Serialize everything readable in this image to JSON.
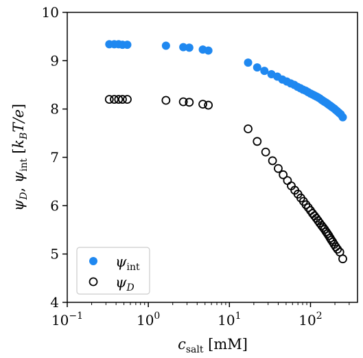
{
  "chart_data": {
    "type": "scatter",
    "xscale": "log",
    "xlim": [
      0.1,
      380
    ],
    "ylim": [
      4,
      10
    ],
    "xlabel": "c_salt [mM]",
    "ylabel": "ψ_D, ψ_int [k_B T/e]",
    "x_ticks": [
      {
        "value": 0.1,
        "base": "10",
        "exp": "−1"
      },
      {
        "value": 1,
        "base": "10",
        "exp": "0"
      },
      {
        "value": 10,
        "base": "10",
        "exp": "1"
      },
      {
        "value": 100,
        "base": "10",
        "exp": "2"
      }
    ],
    "y_ticks": [
      4,
      5,
      6,
      7,
      8,
      9,
      10
    ],
    "legend_position": "lower-left",
    "series": [
      {
        "name": "ψ_int",
        "marker": "filled-circle",
        "color": "#1f88f0",
        "points": [
          [
            0.33,
            9.34
          ],
          [
            0.38,
            9.34
          ],
          [
            0.43,
            9.34
          ],
          [
            0.48,
            9.33
          ],
          [
            0.55,
            9.33
          ],
          [
            1.65,
            9.31
          ],
          [
            2.7,
            9.28
          ],
          [
            3.2,
            9.27
          ],
          [
            4.7,
            9.23
          ],
          [
            5.5,
            9.21
          ],
          [
            17,
            8.96
          ],
          [
            22,
            8.86
          ],
          [
            27,
            8.79
          ],
          [
            33,
            8.72
          ],
          [
            39,
            8.67
          ],
          [
            45,
            8.61
          ],
          [
            51,
            8.57
          ],
          [
            57,
            8.53
          ],
          [
            63,
            8.5
          ],
          [
            69,
            8.46
          ],
          [
            75,
            8.43
          ],
          [
            81,
            8.4
          ],
          [
            87,
            8.38
          ],
          [
            93,
            8.35
          ],
          [
            100,
            8.32
          ],
          [
            106,
            8.3
          ],
          [
            112,
            8.28
          ],
          [
            118,
            8.26
          ],
          [
            124,
            8.24
          ],
          [
            130,
            8.22
          ],
          [
            137,
            8.19
          ],
          [
            143,
            8.17
          ],
          [
            149,
            8.15
          ],
          [
            156,
            8.13
          ],
          [
            162,
            8.11
          ],
          [
            168,
            8.09
          ],
          [
            175,
            8.07
          ],
          [
            181,
            8.05
          ],
          [
            188,
            8.03
          ],
          [
            196,
            8.01
          ],
          [
            205,
            7.98
          ],
          [
            215,
            7.95
          ],
          [
            225,
            7.92
          ],
          [
            236,
            7.89
          ],
          [
            250,
            7.83
          ]
        ]
      },
      {
        "name": "ψ_D",
        "marker": "open-circle",
        "color": "#000000",
        "points": [
          [
            0.33,
            8.2
          ],
          [
            0.38,
            8.2
          ],
          [
            0.43,
            8.2
          ],
          [
            0.48,
            8.2
          ],
          [
            0.55,
            8.2
          ],
          [
            1.65,
            8.18
          ],
          [
            2.7,
            8.15
          ],
          [
            3.2,
            8.14
          ],
          [
            4.7,
            8.1
          ],
          [
            5.5,
            8.08
          ],
          [
            17,
            7.59
          ],
          [
            22,
            7.33
          ],
          [
            28,
            7.11
          ],
          [
            34,
            6.93
          ],
          [
            40,
            6.77
          ],
          [
            46,
            6.64
          ],
          [
            52,
            6.52
          ],
          [
            58,
            6.41
          ],
          [
            64,
            6.32
          ],
          [
            70,
            6.24
          ],
          [
            76,
            6.16
          ],
          [
            82,
            6.09
          ],
          [
            88,
            6.02
          ],
          [
            94,
            5.96
          ],
          [
            100,
            5.9
          ],
          [
            106,
            5.84
          ],
          [
            112,
            5.79
          ],
          [
            118,
            5.74
          ],
          [
            124,
            5.69
          ],
          [
            130,
            5.64
          ],
          [
            137,
            5.59
          ],
          [
            143,
            5.55
          ],
          [
            149,
            5.51
          ],
          [
            156,
            5.46
          ],
          [
            162,
            5.42
          ],
          [
            168,
            5.38
          ],
          [
            175,
            5.33
          ],
          [
            181,
            5.29
          ],
          [
            188,
            5.25
          ],
          [
            196,
            5.2
          ],
          [
            205,
            5.15
          ],
          [
            215,
            5.1
          ],
          [
            230,
            5.04
          ],
          [
            250,
            4.9
          ]
        ]
      }
    ]
  }
}
